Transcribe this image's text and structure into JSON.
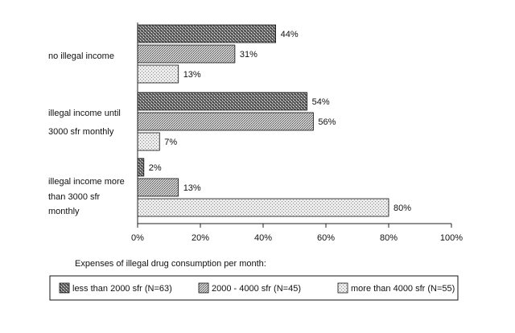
{
  "chart_data": {
    "type": "bar",
    "orientation": "horizontal",
    "categories": [
      [
        "no illegal income"
      ],
      [
        "illegal income until",
        "3000 sfr monthly"
      ],
      [
        "illegal income more",
        "than 3000 sfr",
        "monthly"
      ]
    ],
    "series": [
      {
        "name": "less than 2000 sfr (N=63)",
        "values": [
          44,
          54,
          2
        ],
        "labels": [
          "44%",
          "54%",
          "2%"
        ],
        "pattern": "dense-crosshatch"
      },
      {
        "name": "2000 - 4000 sfr (N=45)",
        "values": [
          31,
          56,
          13
        ],
        "labels": [
          "31%",
          "56%",
          "13%"
        ],
        "pattern": "medium-dots"
      },
      {
        "name": "more than 4000 sfr (N=55)",
        "values": [
          13,
          7,
          80
        ],
        "labels": [
          "13%",
          "7%",
          "80%"
        ],
        "pattern": "light-dots"
      }
    ],
    "x_ticks": [
      "0%",
      "20%",
      "40%",
      "60%",
      "80%",
      "100%"
    ],
    "xlim": [
      0,
      100
    ],
    "legend_title": "Expenses of illegal drug consumption per  month:",
    "legend_placement": "bottom",
    "grid": false
  }
}
